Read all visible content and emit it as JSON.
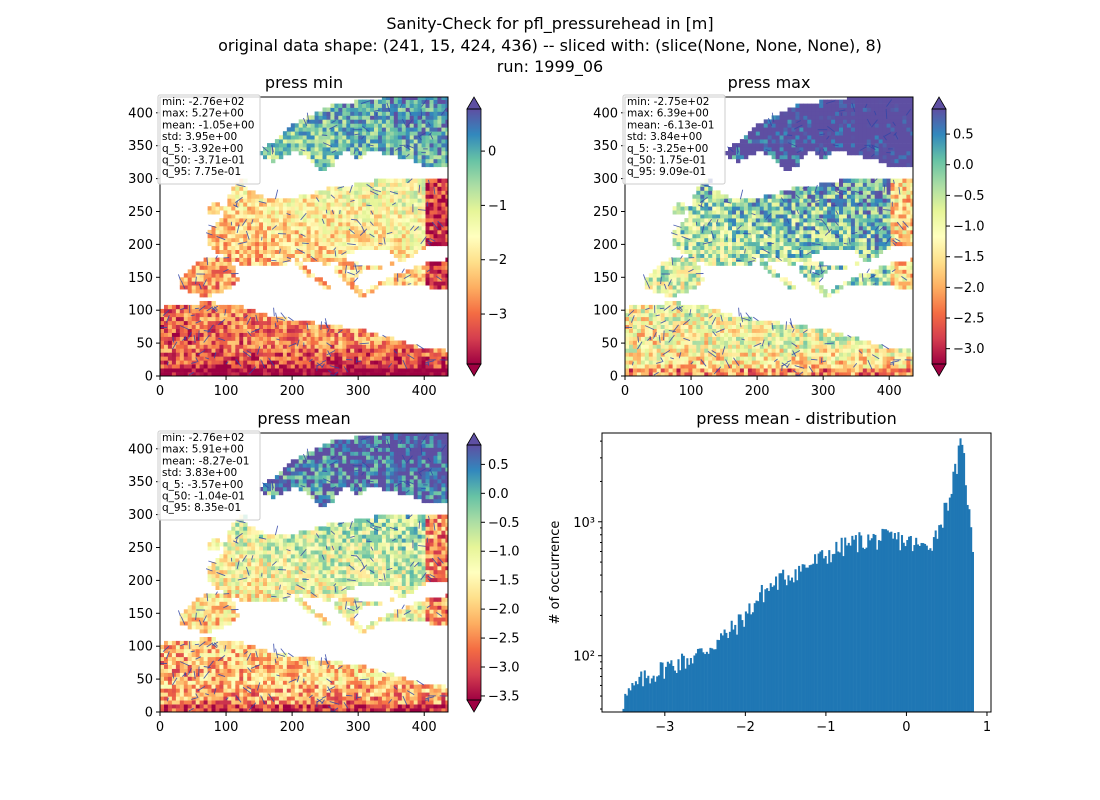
{
  "figure": {
    "title_lines": [
      "Sanity-Check for pfl_pressurehead in [m]",
      "original data shape: (241, 15, 424, 436) -- sliced with: (slice(None, None, None), 8)",
      "run: 1999_06"
    ]
  },
  "colors": {
    "colormap": [
      "#9e0142",
      "#d53e4f",
      "#f46d43",
      "#fdae61",
      "#fee08b",
      "#ffffbf",
      "#e6f598",
      "#abdda4",
      "#66c2a5",
      "#3288bd",
      "#5e4fa2"
    ],
    "rivers": "#3346a8",
    "histogram_bar": "#1f77b4"
  },
  "chart_data": [
    {
      "type": "heatmap",
      "title": "press min",
      "xlim": [
        0,
        436
      ],
      "ylim": [
        0,
        424
      ],
      "xticks": [
        0,
        100,
        200,
        300,
        400
      ],
      "yticks": [
        0,
        50,
        100,
        150,
        200,
        250,
        300,
        350,
        400
      ],
      "colorbar": {
        "vmin": -3.92,
        "vmax": 0.775,
        "ticks": [
          0,
          -1,
          -2,
          -3
        ],
        "tick_labels": [
          "0",
          "−1",
          "−2",
          "−3"
        ],
        "extend": "both"
      },
      "stats": [
        "min: -2.76e+02",
        "max: 5.27e+00",
        "mean: -1.05e+00",
        "std: 3.95e+00",
        "q_5: -3.92e+00",
        "q_50: -3.71e-01",
        "q_95: 7.75e-01"
      ]
    },
    {
      "type": "heatmap",
      "title": "press max",
      "xlim": [
        0,
        436
      ],
      "ylim": [
        0,
        424
      ],
      "xticks": [
        0,
        100,
        200,
        300,
        400
      ],
      "yticks": [
        0,
        50,
        100,
        150,
        200,
        250,
        300,
        350,
        400
      ],
      "colorbar": {
        "vmin": -3.25,
        "vmax": 0.909,
        "ticks": [
          0.5,
          0,
          -0.5,
          -1,
          -1.5,
          -2,
          -2.5,
          -3
        ],
        "tick_labels": [
          "0.5",
          "0.0",
          "−0.5",
          "−1.0",
          "−1.5",
          "−2.0",
          "−2.5",
          "−3.0"
        ],
        "extend": "both"
      },
      "stats": [
        "min: -2.75e+02",
        "max: 6.39e+00",
        "mean: -6.13e-01",
        "std: 3.84e+00",
        "q_5: -3.25e+00",
        "q_50: 1.75e-01",
        "q_95: 9.09e-01"
      ]
    },
    {
      "type": "heatmap",
      "title": "press mean",
      "xlim": [
        0,
        436
      ],
      "ylim": [
        0,
        424
      ],
      "xticks": [
        0,
        100,
        200,
        300,
        400
      ],
      "yticks": [
        0,
        50,
        100,
        150,
        200,
        250,
        300,
        350,
        400
      ],
      "colorbar": {
        "vmin": -3.57,
        "vmax": 0.835,
        "ticks": [
          0.5,
          0,
          -0.5,
          -1,
          -1.5,
          -2,
          -2.5,
          -3,
          -3.5
        ],
        "tick_labels": [
          "0.5",
          "0.0",
          "−0.5",
          "−1.0",
          "−1.5",
          "−2.0",
          "−2.5",
          "−3.0",
          "−3.5"
        ],
        "extend": "both"
      },
      "stats": [
        "min: -2.76e+02",
        "max: 5.91e+00",
        "mean: -8.27e-01",
        "std: 3.83e+00",
        "q_5: -3.57e+00",
        "q_50: -1.04e-01",
        "q_95: 8.35e-01"
      ]
    },
    {
      "type": "bar",
      "title": "press mean - distribution",
      "xlabel": "",
      "ylabel": "# of occurrence",
      "yscale": "log",
      "xlim": [
        -3.78,
        1.05
      ],
      "ylim": [
        38,
        4600
      ],
      "xticks": [
        -3,
        -2,
        -1,
        0,
        1
      ],
      "xtick_labels": [
        "−3",
        "−2",
        "−1",
        "0",
        "1"
      ],
      "yticks": [
        100,
        1000
      ],
      "ytick_labels": [
        "10²",
        "10³"
      ],
      "bin_edges_range": [
        -3.57,
        0.835
      ],
      "bin_count": 200,
      "anchors": [
        [
          -3.57,
          40
        ],
        [
          -3.5,
          48
        ],
        [
          -3.3,
          65
        ],
        [
          -3.0,
          82
        ],
        [
          -2.7,
          95
        ],
        [
          -2.5,
          110
        ],
        [
          -2.2,
          150
        ],
        [
          -2.0,
          200
        ],
        [
          -1.8,
          290
        ],
        [
          -1.6,
          360
        ],
        [
          -1.4,
          420
        ],
        [
          -1.2,
          480
        ],
        [
          -1.0,
          560
        ],
        [
          -0.8,
          650
        ],
        [
          -0.6,
          720
        ],
        [
          -0.4,
          740
        ],
        [
          -0.2,
          760
        ],
        [
          0.0,
          720
        ],
        [
          0.2,
          640
        ],
        [
          0.35,
          760
        ],
        [
          0.45,
          1100
        ],
        [
          0.55,
          1700
        ],
        [
          0.62,
          2600
        ],
        [
          0.67,
          3700
        ],
        [
          0.72,
          2800
        ],
        [
          0.78,
          1100
        ],
        [
          0.835,
          550
        ]
      ]
    }
  ]
}
